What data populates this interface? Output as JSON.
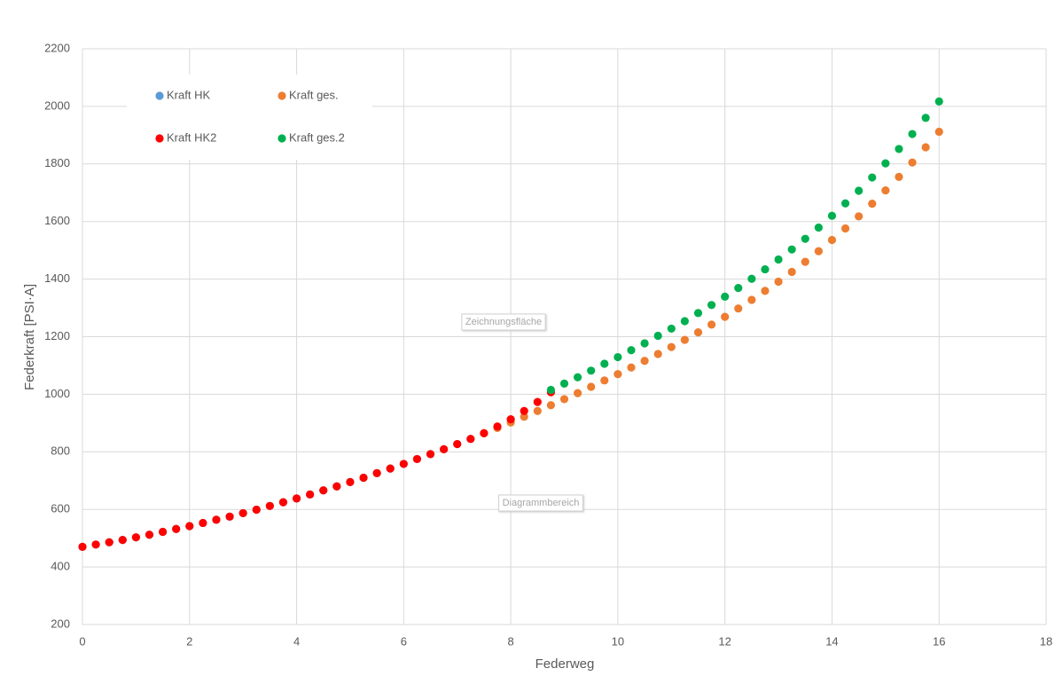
{
  "chart_data": {
    "type": "scatter",
    "x_label": "Federweg",
    "y_label": "Federkraft [PSI·A]",
    "xlim": [
      0,
      18
    ],
    "xticks": [
      0,
      2,
      4,
      6,
      8,
      10,
      12,
      14,
      16,
      18
    ],
    "ylim": [
      200,
      2200
    ],
    "yticks": [
      200,
      400,
      600,
      800,
      1000,
      1200,
      1400,
      1600,
      1800,
      2000,
      2200
    ],
    "grid": true,
    "legend": "top-left",
    "annotations": [
      "Zeichnungsfläche",
      "Diagrammbereich"
    ],
    "series": [
      {
        "name": "Kraft HK",
        "color": "#5b9bd5",
        "x": [
          0,
          0.25,
          0.5,
          0.75,
          1,
          1.25,
          1.5,
          1.75,
          2,
          2.25,
          2.5,
          2.75,
          3,
          3.25,
          3.5,
          3.75,
          4,
          4.25,
          4.5,
          4.75,
          5,
          5.25,
          5.5,
          5.75,
          6,
          6.25,
          6.5,
          6.75,
          7,
          7.25
        ],
        "values": [
          470,
          478,
          486,
          494,
          503,
          512,
          522,
          532,
          542,
          553,
          564,
          575,
          587,
          599,
          612,
          625,
          638,
          652,
          666,
          680,
          695,
          710,
          726,
          742,
          758,
          775,
          792,
          809,
          827,
          845
        ]
      },
      {
        "name": "Kraft ges.",
        "color": "#ed7d31",
        "x": [
          7.5,
          7.75,
          8,
          8.25,
          8.5,
          8.75,
          9,
          9.25,
          9.5,
          9.75,
          10,
          10.25,
          10.5,
          10.75,
          11,
          11.25,
          11.5,
          11.75,
          12,
          12.25,
          12.5,
          12.75,
          13,
          13.25,
          13.5,
          13.75,
          14,
          14.25,
          14.5,
          14.75,
          15,
          15.25,
          15.5,
          15.75,
          16
        ],
        "values": [
          864,
          883,
          902,
          922,
          942,
          962,
          983,
          1004,
          1026,
          1048,
          1070,
          1093,
          1116,
          1140,
          1164,
          1189,
          1215,
          1242,
          1269,
          1298,
          1328,
          1359,
          1391,
          1425,
          1460,
          1497,
          1536,
          1576,
          1618,
          1662,
          1708,
          1755,
          1805,
          1858,
          1912
        ]
      },
      {
        "name": "Kraft HK2",
        "color": "#ff0000",
        "x": [
          0,
          0.25,
          0.5,
          0.75,
          1,
          1.25,
          1.5,
          1.75,
          2,
          2.25,
          2.5,
          2.75,
          3,
          3.25,
          3.5,
          3.75,
          4,
          4.25,
          4.5,
          4.75,
          5,
          5.25,
          5.5,
          5.75,
          6,
          6.25,
          6.5,
          6.75,
          7,
          7.25,
          7.5,
          7.75,
          8,
          8.25,
          8.5,
          8.75
        ],
        "values": [
          470,
          478,
          486,
          494,
          503,
          512,
          522,
          532,
          542,
          553,
          564,
          575,
          587,
          599,
          612,
          625,
          638,
          652,
          666,
          680,
          695,
          710,
          726,
          742,
          758,
          775,
          792,
          809,
          827,
          845,
          865,
          888,
          913,
          942,
          973,
          1007
        ]
      },
      {
        "name": "Kraft ges.2",
        "color": "#00b050",
        "x": [
          8.75,
          9,
          9.25,
          9.5,
          9.75,
          10,
          10.25,
          10.5,
          10.75,
          11,
          11.25,
          11.5,
          11.75,
          12,
          12.25,
          12.5,
          12.75,
          13,
          13.25,
          13.5,
          13.75,
          14,
          14.25,
          14.5,
          14.75,
          15,
          15.25,
          15.5,
          15.75,
          16
        ],
        "values": [
          1015,
          1037,
          1059,
          1082,
          1106,
          1129,
          1153,
          1177,
          1203,
          1228,
          1254,
          1282,
          1310,
          1339,
          1369,
          1401,
          1434,
          1468,
          1503,
          1540,
          1579,
          1620,
          1663,
          1707,
          1753,
          1802,
          1852,
          1904,
          1960,
          2017
        ]
      }
    ]
  }
}
